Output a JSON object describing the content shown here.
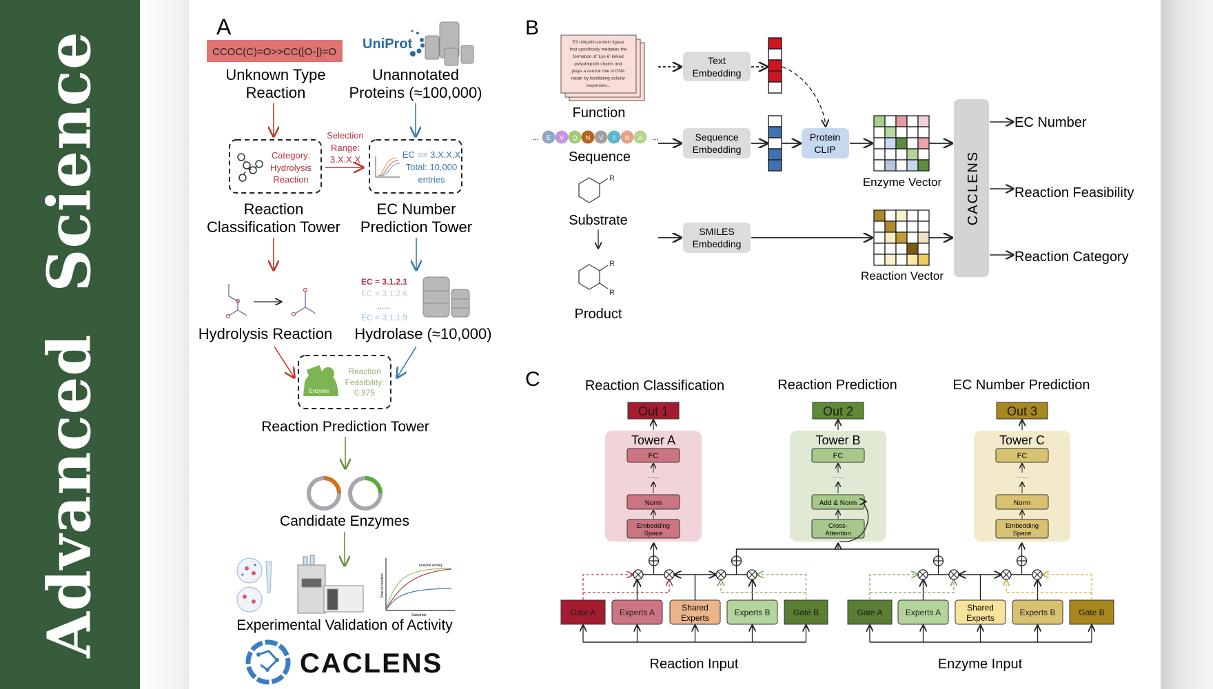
{
  "journal": {
    "title": "Advanced Science",
    "band_color": "#365c3b"
  },
  "panel_a": {
    "label": "A",
    "smiles": "CCOC(C)=O>>CC([O-])=O",
    "uniprot_logo": "UniProt",
    "unknown_reaction": [
      "Unknown Type",
      "Reaction"
    ],
    "unannotated": [
      "Unannotated",
      "Proteins (≈100,000)"
    ],
    "category_box": [
      "Category:",
      "Hydrolysis",
      "Reaction"
    ],
    "selection_range": [
      "Selection",
      "Range:",
      "3.X.X.X"
    ],
    "ec_box": [
      "EC == 3.X.X.X",
      "Total: 10,000",
      "entries"
    ],
    "reaction_class_tower": [
      "Reaction",
      "Classification Tower"
    ],
    "ec_tower": [
      "EC Number",
      "Prediction Tower"
    ],
    "ec_list": [
      "EC = 3.1.2.1",
      "EC = 3.1.2.6",
      "......",
      "EC = 3.1.1.9"
    ],
    "hydrolysis_reaction": "Hydrolysis Reaction",
    "hydrolase": "Hydrolase (≈10,000)",
    "enzyme_label": "Enzyme",
    "feasibility": [
      "Reaction",
      "Feasibility:",
      "0.975"
    ],
    "reaction_prediction_tower": "Reaction Prediction Tower",
    "candidate_enzymes": "Candidate Enzymes",
    "plot_title": "enzyme activity",
    "plot_ylabel": "Rate of reaction",
    "plot_xlabel": "Substrate",
    "validation": "Experimental Validation of Activity",
    "logo_text": "CACLENS",
    "colors": {
      "red": "#c0392b",
      "blue": "#3a78a8",
      "green": "#6a8f3a",
      "smiles_bg": "#e07471"
    }
  },
  "panel_b": {
    "label": "B",
    "function_text": [
      "E3 ubiquitin-protein ligase",
      "that specifically mediates the",
      "formation of 'Lys-6'-linked",
      "polyubiquitin chains and",
      "plays a central role in DNA",
      "repair by facilitating cellular",
      "responses..."
    ],
    "function": "Function",
    "sequence_letters": [
      "E",
      "V",
      "Q",
      "N",
      "V",
      "I",
      "N",
      "A"
    ],
    "sequence_colors": [
      "#8fa9c6",
      "#c596e0",
      "#a5c97a",
      "#b8651b",
      "#a0a0a0",
      "#5fb7c9",
      "#e9a08a",
      "#b5d58c"
    ],
    "ellipsis": "...",
    "sequence": "Sequence",
    "substrate": "Substrate",
    "product": "Product",
    "r_group": "R",
    "text_embedding": [
      "Text",
      "Embedding"
    ],
    "sequence_embedding": [
      "Sequence",
      "Embedding"
    ],
    "smiles_embedding": [
      "SMILES",
      "Embedding"
    ],
    "protein_clip": [
      "Protein",
      "CLIP"
    ],
    "text_vector_colors": [
      "#d0141e",
      "#ffffff",
      "#d0141e",
      "#d0141e",
      "#ffffff"
    ],
    "seq_vector_colors": [
      "#ffffff",
      "#3f72b0",
      "#ffffff",
      "#3f72b0",
      "#3f72b0"
    ],
    "enzyme_grid": [
      [
        "#a8cf8e",
        "#ffffff",
        "#e49aa0",
        "#ffffff",
        "#f3d0d5"
      ],
      [
        "#ffffff",
        "#b8daa0",
        "#ffffff",
        "#ffffff",
        "#ffffff"
      ],
      [
        "#ffffff",
        "#c9daf0",
        "#5e8b3e",
        "#ffffff",
        "#eaa2aa"
      ],
      [
        "#ffffff",
        "#ffffff",
        "#ffffff",
        "#b3d69a",
        "#ffffff"
      ],
      [
        "#ffffff",
        "#b7c6dc",
        "#ffffff",
        "#c3d8f0",
        "#5e8b3e"
      ]
    ],
    "reaction_grid": [
      [
        "#b08a2a",
        "#ffffff",
        "#faf1cf",
        "#ffffff",
        "#ffffff"
      ],
      [
        "#ffffff",
        "#b08a2a",
        "#ffffff",
        "#ffffff",
        "#ffffff"
      ],
      [
        "#ffffff",
        "#f6ebc0",
        "#c39a35",
        "#ffffff",
        "#ece3c2"
      ],
      [
        "#ffffff",
        "#ffffff",
        "#ffffff",
        "#7a5b14",
        "#ffffff"
      ],
      [
        "#ffffff",
        "#fbf0c8",
        "#ffffff",
        "#fae9a8",
        "#f2cc5a"
      ]
    ],
    "enzyme_vector": "Enzyme Vector",
    "reaction_vector": "Reaction Vector",
    "caclens": "CACLENS",
    "outputs": [
      "EC Number",
      "Reaction Feasibility",
      "Reaction Category"
    ]
  },
  "panel_c": {
    "label": "C",
    "headings": [
      "Reaction Classification",
      "Reaction Prediction",
      "EC Number Prediction"
    ],
    "outs": [
      "Out 1",
      "Out 2",
      "Out 3"
    ],
    "out_colors": [
      "#a51c30",
      "#5f8a34",
      "#a8871f"
    ],
    "towers": [
      {
        "title": "Tower A",
        "fc": "FC",
        "dots": "......",
        "mid": "Norm",
        "bottom": [
          "Embedding",
          "Space"
        ],
        "bg": "#f1d4d9",
        "box": "#cd7482"
      },
      {
        "title": "Tower B",
        "fc": "FC",
        "dots": "......",
        "mid": "Add & Norm",
        "bottom": [
          "Cross-",
          "Attention"
        ],
        "bg": "#dfe9d3",
        "box": "#a7c88a"
      },
      {
        "title": "Tower C",
        "fc": "FC",
        "dots": "......",
        "mid": "Norm",
        "bottom": [
          "Embedding",
          "Space"
        ],
        "bg": "#f2eacb",
        "box": "#d8c272"
      }
    ],
    "reaction_group": [
      {
        "label": [
          "Gate A"
        ],
        "color": "#a51c30"
      },
      {
        "label": [
          "Experts A"
        ],
        "color": "#cd7482"
      },
      {
        "label": [
          "Shared",
          "Experts"
        ],
        "color": "#eab48a"
      },
      {
        "label": [
          "Experts B"
        ],
        "color": "#b3d49a"
      },
      {
        "label": [
          "Gate B"
        ],
        "color": "#5a7e34"
      }
    ],
    "enzyme_group": [
      {
        "label": [
          "Gate A"
        ],
        "color": "#5a7e34"
      },
      {
        "label": [
          "Experts A"
        ],
        "color": "#b3d49a"
      },
      {
        "label": [
          "Shared",
          "Experts"
        ],
        "color": "#f7e39a"
      },
      {
        "label": [
          "Experts B"
        ],
        "color": "#d8c272"
      },
      {
        "label": [
          "Gate B"
        ],
        "color": "#a8871f"
      }
    ],
    "reaction_input": "Reaction Input",
    "enzyme_input": "Enzyme Input"
  }
}
